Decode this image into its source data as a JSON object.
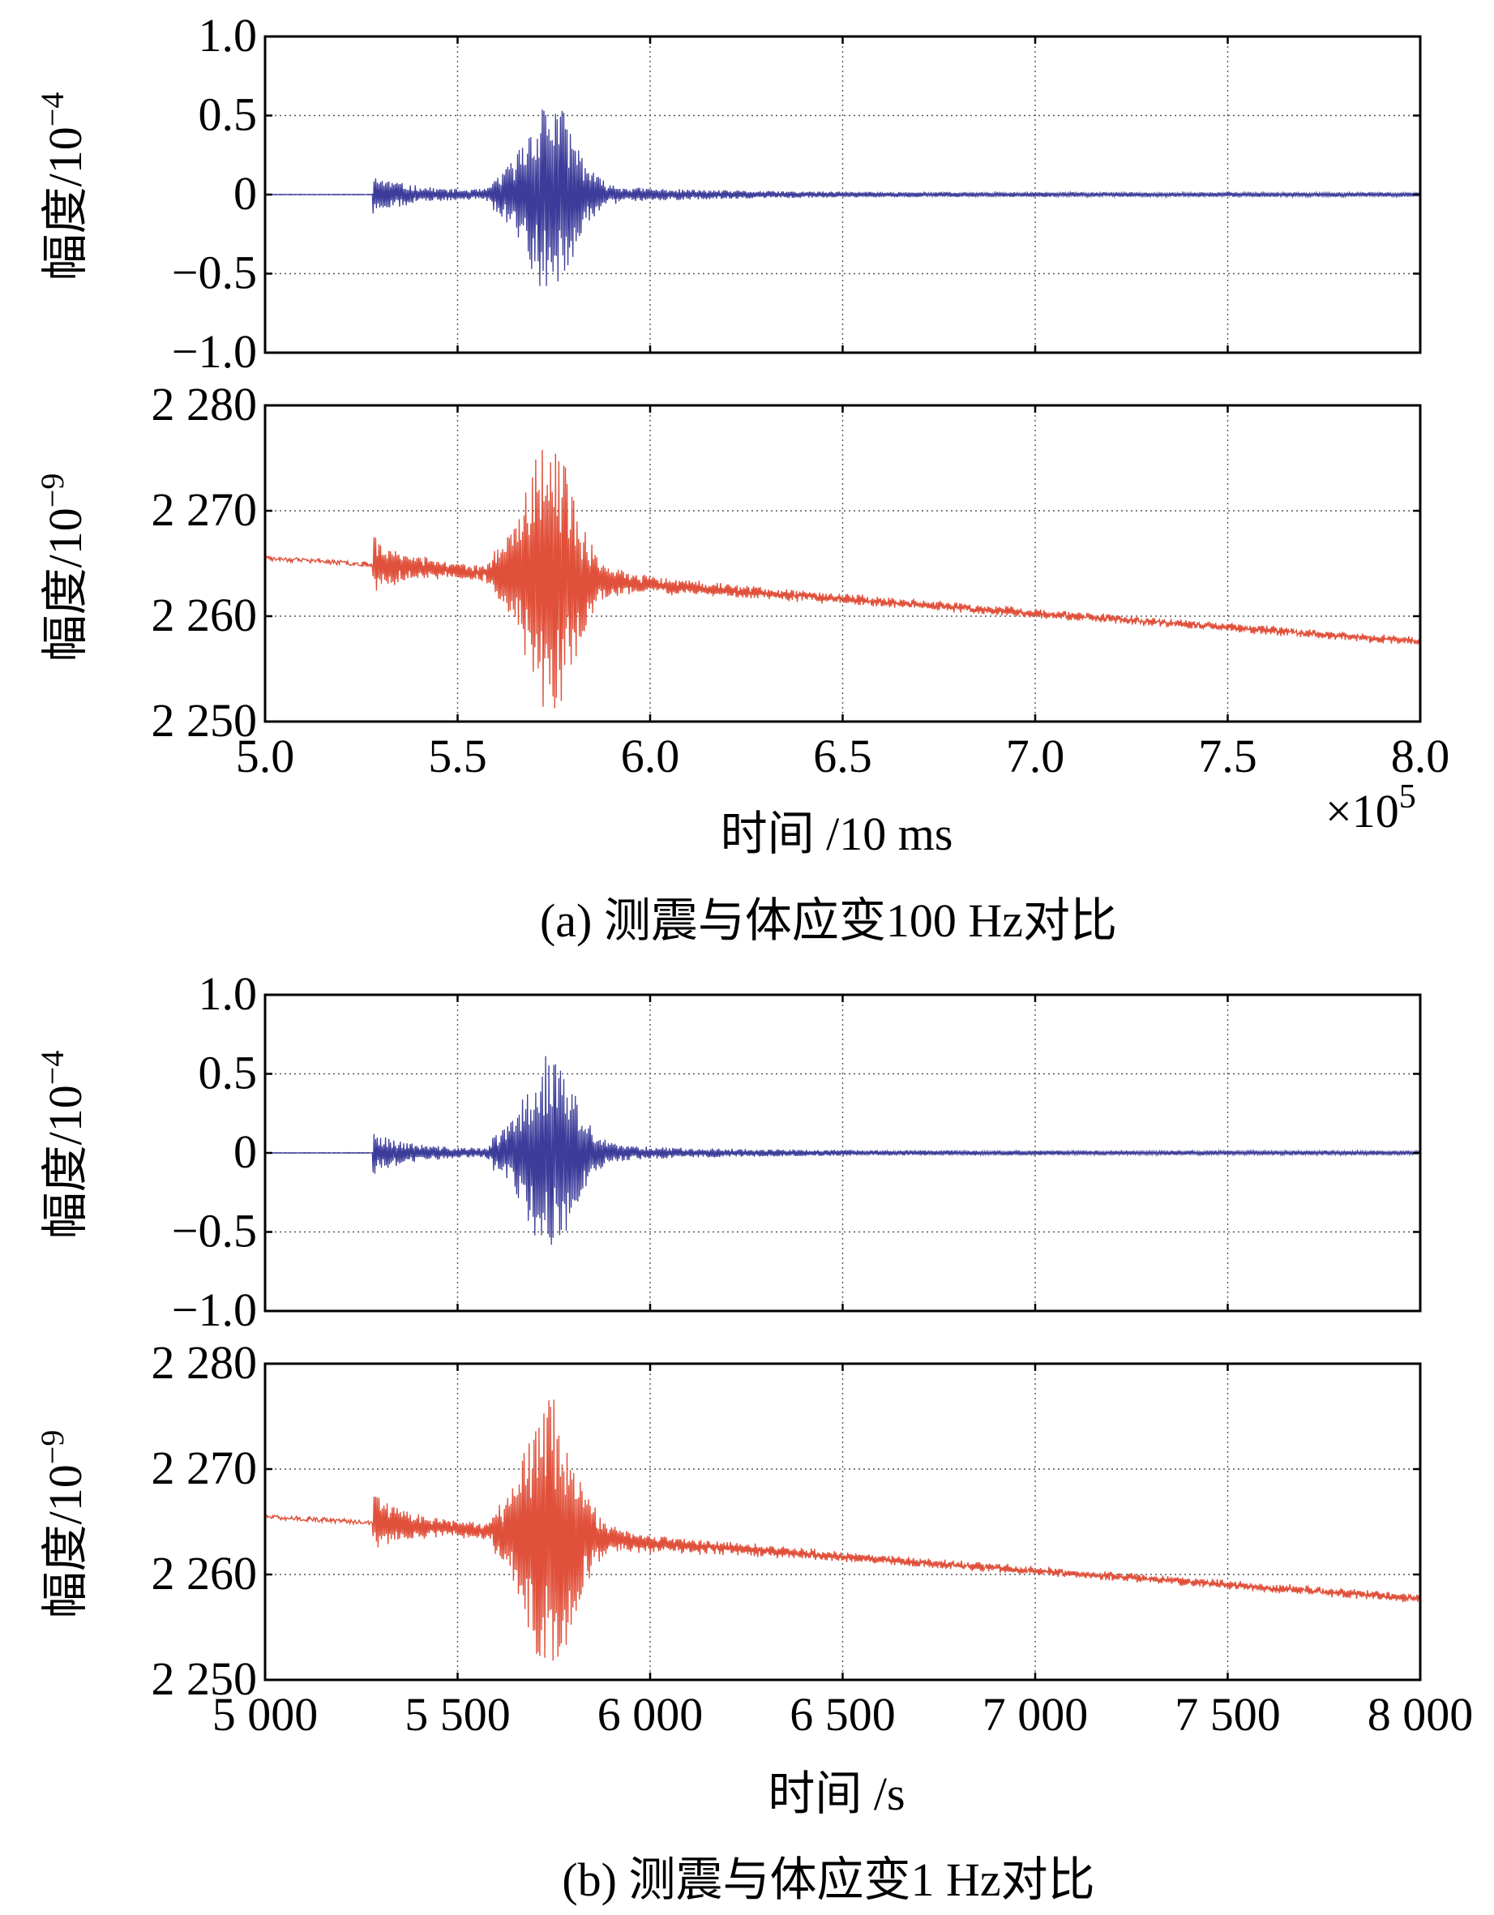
{
  "figure": {
    "panel_a": {
      "caption": "(a) 测震与体应变100 Hz对比",
      "xlabel": "时间 /10 ms",
      "x_multiplier": {
        "base": "×10",
        "exp": "5"
      }
    },
    "panel_b": {
      "caption": "(b) 测震与体应变1 Hz对比",
      "xlabel": "时间 /s"
    },
    "ylabel_seismic": {
      "base": "幅度/10",
      "exp": "−4"
    },
    "ylabel_strain": {
      "base": "幅度/10",
      "exp": "−9"
    }
  },
  "colors": {
    "seismic": "#3c3c9a",
    "strain": "#e0503a"
  },
  "chart_data": [
    {
      "type": "line",
      "panel": "a-top",
      "series": [
        {
          "name": "测震",
          "color": "#3c3c9a"
        }
      ],
      "ylabel": "幅度/10−4",
      "xlim": [
        500000,
        800000
      ],
      "ylim": [
        -1.0,
        1.0
      ],
      "yticks": [
        1.0,
        0.5,
        0,
        -0.5,
        -1.0
      ],
      "ytick_labels": [
        "1.0",
        "0.5",
        "0",
        "−0.5",
        "−1.0"
      ],
      "grid": true,
      "events": {
        "p_arrival": 528000,
        "s_peak": 574000,
        "peak_amplitude": 0.55,
        "trough_amplitude": -0.6
      }
    },
    {
      "type": "line",
      "panel": "a-bottom",
      "series": [
        {
          "name": "体应变",
          "color": "#e0503a"
        }
      ],
      "ylabel": "幅度/10−9",
      "xlabel": "时间 /10 ms",
      "xlim": [
        500000,
        800000
      ],
      "ylim": [
        2250,
        2280
      ],
      "yticks": [
        2280,
        2270,
        2260,
        2250
      ],
      "ytick_labels": [
        "2 280",
        "2 270",
        "2 260",
        "2 250"
      ],
      "xticks": [
        500000,
        550000,
        600000,
        650000,
        700000,
        750000,
        800000
      ],
      "xtick_labels": [
        "5.0",
        "5.5",
        "6.0",
        "6.5",
        "7.0",
        "7.5",
        "8.0"
      ],
      "grid": true,
      "baseline": {
        "start": 2265.5,
        "end": 2258.2
      },
      "events": {
        "p_arrival": 528000,
        "s_peak": 574000,
        "peak_value": 2277,
        "trough_value": 2250
      }
    },
    {
      "type": "line",
      "panel": "b-top",
      "series": [
        {
          "name": "测震",
          "color": "#3c3c9a"
        }
      ],
      "ylabel": "幅度/10−4",
      "xlim": [
        5000,
        8000
      ],
      "ylim": [
        -1.0,
        1.0
      ],
      "yticks": [
        1.0,
        0.5,
        0,
        -0.5,
        -1.0
      ],
      "ytick_labels": [
        "1.0",
        "0.5",
        "0",
        "−0.5",
        "−1.0"
      ],
      "grid": true,
      "events": {
        "p_arrival": 5280,
        "s_peak": 5740,
        "peak_amplitude": 0.52,
        "trough_amplitude": -0.58
      }
    },
    {
      "type": "line",
      "panel": "b-bottom",
      "series": [
        {
          "name": "体应变",
          "color": "#e0503a"
        }
      ],
      "ylabel": "幅度/10−9",
      "xlabel": "时间 /s",
      "xlim": [
        5000,
        8000
      ],
      "ylim": [
        2250,
        2280
      ],
      "yticks": [
        2280,
        2270,
        2260,
        2250
      ],
      "ytick_labels": [
        "2 280",
        "2 270",
        "2 260",
        "2 250"
      ],
      "xticks": [
        5000,
        5500,
        6000,
        6500,
        7000,
        7500,
        8000
      ],
      "xtick_labels": [
        "5 000",
        "5 500",
        "6 000",
        "6 500",
        "7 000",
        "7 500",
        "8 000"
      ],
      "grid": true,
      "baseline": {
        "start": 2265.5,
        "end": 2258.3
      },
      "events": {
        "p_arrival": 5280,
        "s_peak": 5740,
        "peak_value": 2276.5,
        "trough_value": 2251
      }
    }
  ]
}
